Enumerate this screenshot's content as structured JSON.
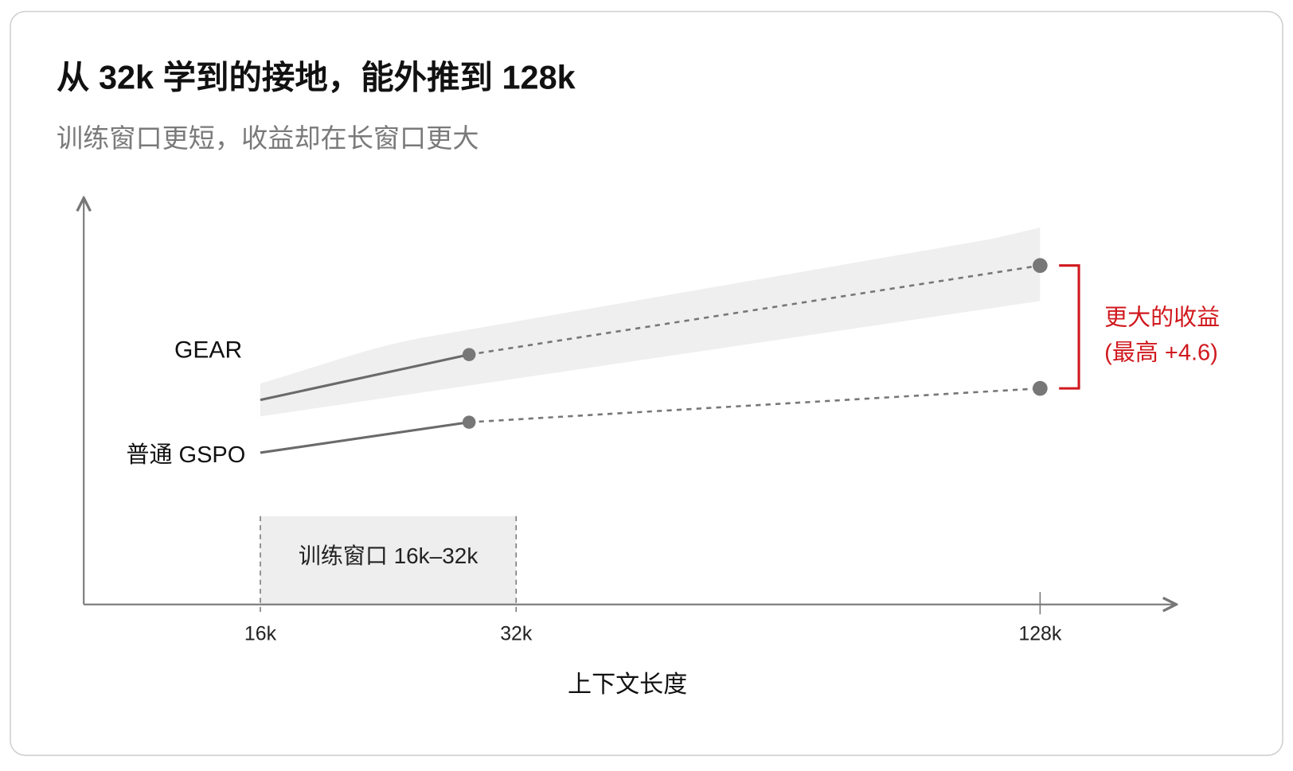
{
  "title": "从 32k 学到的接地，能外推到 128k",
  "subtitle": "训练窗口更短，收益却在长窗口更大",
  "series_labels": [
    "GEAR",
    "普通 GSPO"
  ],
  "training_window": "训练窗口 16k–32k",
  "x_ticks": [
    "16k",
    "32k",
    "128k"
  ],
  "x_axis_label": "上下文长度",
  "annotation": {
    "line1": "更大的收益",
    "line2": "(最高 +4.6)"
  }
}
